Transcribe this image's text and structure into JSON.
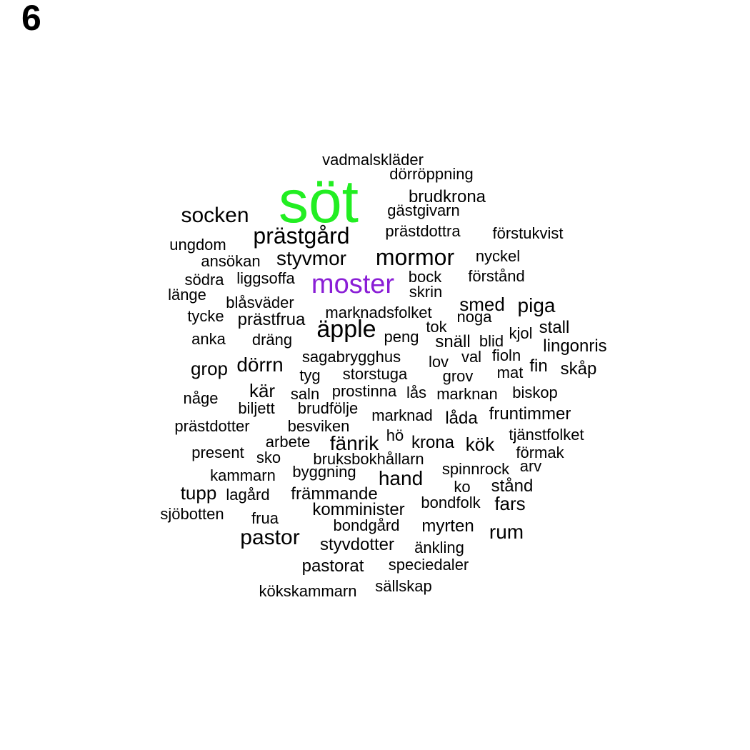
{
  "panel_label": "6",
  "colors": {
    "default": "#000000",
    "highlight_green": "#22ee22",
    "highlight_purple": "#8a1ed6"
  },
  "words": [
    {
      "text": "söt",
      "color": "#22ee22"
    },
    {
      "text": "moster",
      "color": "#8a1ed6"
    },
    {
      "text": "vadmalskläder"
    },
    {
      "text": "dörröppning"
    },
    {
      "text": "brudkrona"
    },
    {
      "text": "gästgivarn"
    },
    {
      "text": "socken"
    },
    {
      "text": "prästgård"
    },
    {
      "text": "prästdottra"
    },
    {
      "text": "förstukvist"
    },
    {
      "text": "ungdom"
    },
    {
      "text": "ansökan"
    },
    {
      "text": "styvmor"
    },
    {
      "text": "mormor"
    },
    {
      "text": "nyckel"
    },
    {
      "text": "södra"
    },
    {
      "text": "liggsoffa"
    },
    {
      "text": "bock"
    },
    {
      "text": "förstånd"
    },
    {
      "text": "länge"
    },
    {
      "text": "skrin"
    },
    {
      "text": "blåsväder"
    },
    {
      "text": "smed"
    },
    {
      "text": "piga"
    },
    {
      "text": "tycke"
    },
    {
      "text": "prästfrua"
    },
    {
      "text": "marknadsfolket"
    },
    {
      "text": "noga"
    },
    {
      "text": "äpple"
    },
    {
      "text": "tok"
    },
    {
      "text": "stall"
    },
    {
      "text": "anka"
    },
    {
      "text": "dräng"
    },
    {
      "text": "peng"
    },
    {
      "text": "snäll"
    },
    {
      "text": "blid"
    },
    {
      "text": "kjol"
    },
    {
      "text": "lingonris"
    },
    {
      "text": "sagabrygghus"
    },
    {
      "text": "val"
    },
    {
      "text": "fioln"
    },
    {
      "text": "grop"
    },
    {
      "text": "dörrn"
    },
    {
      "text": "lov"
    },
    {
      "text": "fin"
    },
    {
      "text": "skåp"
    },
    {
      "text": "tyg"
    },
    {
      "text": "storstuga"
    },
    {
      "text": "grov"
    },
    {
      "text": "mat"
    },
    {
      "text": "kär"
    },
    {
      "text": "prostinna"
    },
    {
      "text": "lås"
    },
    {
      "text": "marknan"
    },
    {
      "text": "biskop"
    },
    {
      "text": "någe"
    },
    {
      "text": "saln"
    },
    {
      "text": "biljett"
    },
    {
      "text": "brudfölje"
    },
    {
      "text": "marknad"
    },
    {
      "text": "låda"
    },
    {
      "text": "fruntimmer"
    },
    {
      "text": "prästdotter"
    },
    {
      "text": "besviken"
    },
    {
      "text": "hö"
    },
    {
      "text": "tjänstfolket"
    },
    {
      "text": "arbete"
    },
    {
      "text": "fänrik"
    },
    {
      "text": "krona"
    },
    {
      "text": "kök"
    },
    {
      "text": "present"
    },
    {
      "text": "sko"
    },
    {
      "text": "bruksbokhållarn"
    },
    {
      "text": "förmak"
    },
    {
      "text": "spinnrock"
    },
    {
      "text": "arv"
    },
    {
      "text": "kammarn"
    },
    {
      "text": "byggning"
    },
    {
      "text": "hand"
    },
    {
      "text": "tupp"
    },
    {
      "text": "lagård"
    },
    {
      "text": "främmande"
    },
    {
      "text": "ko"
    },
    {
      "text": "stånd"
    },
    {
      "text": "sjöbotten"
    },
    {
      "text": "komminister"
    },
    {
      "text": "bondfolk"
    },
    {
      "text": "fars"
    },
    {
      "text": "frua"
    },
    {
      "text": "bondgård"
    },
    {
      "text": "myrten"
    },
    {
      "text": "rum"
    },
    {
      "text": "pastor"
    },
    {
      "text": "styvdotter"
    },
    {
      "text": "änkling"
    },
    {
      "text": "pastorat"
    },
    {
      "text": "speciedaler"
    },
    {
      "text": "kökskammarn"
    },
    {
      "text": "sällskap"
    }
  ]
}
